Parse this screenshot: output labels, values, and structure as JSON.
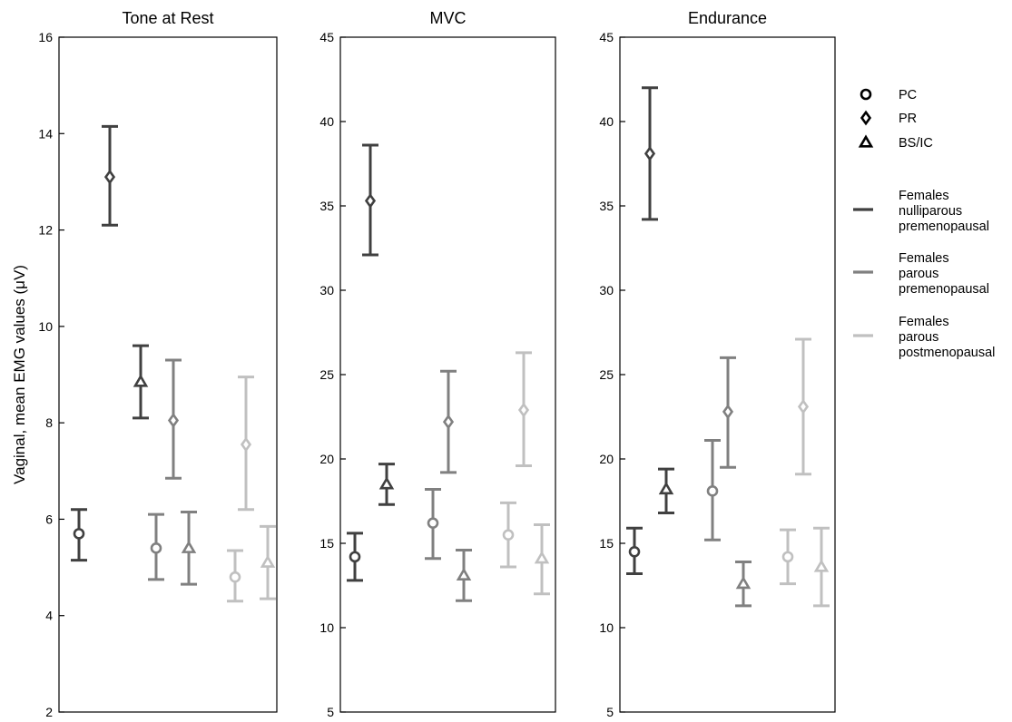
{
  "chart_data": {
    "type": "scatter",
    "ylabel": "Vaginal, mean EMG values (μV)",
    "markers": [
      {
        "name": "PC",
        "shape": "circle"
      },
      {
        "name": "PR",
        "shape": "diamond"
      },
      {
        "name": "BS/IC",
        "shape": "triangle"
      }
    ],
    "groups": [
      {
        "name": "Females nulliparous premenopausal",
        "lines": [
          "Females",
          "nulliparous",
          "premenopausal"
        ],
        "color": "#404040"
      },
      {
        "name": "Females parous premenopausal",
        "lines": [
          "Females",
          "parous",
          "premenopausal"
        ],
        "color": "#808080"
      },
      {
        "name": "Females parous postmenopausal",
        "lines": [
          "Females",
          "parous",
          "postmenopausal"
        ],
        "color": "#c0c0c0"
      }
    ],
    "panels": [
      {
        "title": "Tone at Rest",
        "ylim": [
          2,
          16
        ],
        "yticks": [
          "2",
          "4",
          "6",
          "8",
          "10",
          "12",
          "14",
          "16"
        ],
        "points": [
          {
            "group": 0,
            "marker": "PC",
            "mean": 5.7,
            "low": 5.15,
            "high": 6.2
          },
          {
            "group": 0,
            "marker": "PR",
            "mean": 13.1,
            "low": 12.1,
            "high": 14.15
          },
          {
            "group": 0,
            "marker": "BS/IC",
            "mean": 8.85,
            "low": 8.1,
            "high": 9.6
          },
          {
            "group": 1,
            "marker": "PC",
            "mean": 5.4,
            "low": 4.75,
            "high": 6.1
          },
          {
            "group": 1,
            "marker": "PR",
            "mean": 8.05,
            "low": 6.85,
            "high": 9.3
          },
          {
            "group": 1,
            "marker": "BS/IC",
            "mean": 5.4,
            "low": 4.65,
            "high": 6.15
          },
          {
            "group": 2,
            "marker": "PC",
            "mean": 4.8,
            "low": 4.3,
            "high": 5.35
          },
          {
            "group": 2,
            "marker": "PR",
            "mean": 7.55,
            "low": 6.2,
            "high": 8.95
          },
          {
            "group": 2,
            "marker": "BS/IC",
            "mean": 5.1,
            "low": 4.35,
            "high": 5.85
          }
        ]
      },
      {
        "title": "MVC",
        "ylim": [
          5,
          45
        ],
        "yticks": [
          "5",
          "10",
          "15",
          "20",
          "25",
          "30",
          "35",
          "40",
          "45"
        ],
        "points": [
          {
            "group": 0,
            "marker": "PC",
            "mean": 14.2,
            "low": 12.8,
            "high": 15.6
          },
          {
            "group": 0,
            "marker": "PR",
            "mean": 35.3,
            "low": 32.1,
            "high": 38.6
          },
          {
            "group": 0,
            "marker": "BS/IC",
            "mean": 18.5,
            "low": 17.3,
            "high": 19.7
          },
          {
            "group": 1,
            "marker": "PC",
            "mean": 16.2,
            "low": 14.1,
            "high": 18.2
          },
          {
            "group": 1,
            "marker": "PR",
            "mean": 22.2,
            "low": 19.2,
            "high": 25.2
          },
          {
            "group": 1,
            "marker": "BS/IC",
            "mean": 13.1,
            "low": 11.6,
            "high": 14.6
          },
          {
            "group": 2,
            "marker": "PC",
            "mean": 15.5,
            "low": 13.6,
            "high": 17.4
          },
          {
            "group": 2,
            "marker": "PR",
            "mean": 22.9,
            "low": 19.6,
            "high": 26.3
          },
          {
            "group": 2,
            "marker": "BS/IC",
            "mean": 14.1,
            "low": 12.0,
            "high": 16.1
          }
        ]
      },
      {
        "title": "Endurance",
        "ylim": [
          5,
          45
        ],
        "yticks": [
          "5",
          "10",
          "15",
          "20",
          "25",
          "30",
          "35",
          "40",
          "45"
        ],
        "points": [
          {
            "group": 0,
            "marker": "PC",
            "mean": 14.5,
            "low": 13.2,
            "high": 15.9
          },
          {
            "group": 0,
            "marker": "PR",
            "mean": 38.1,
            "low": 34.2,
            "high": 42.0
          },
          {
            "group": 0,
            "marker": "BS/IC",
            "mean": 18.2,
            "low": 16.8,
            "high": 19.4
          },
          {
            "group": 1,
            "marker": "PC",
            "mean": 18.1,
            "low": 15.2,
            "high": 21.1
          },
          {
            "group": 1,
            "marker": "PR",
            "mean": 22.8,
            "low": 19.5,
            "high": 26.0
          },
          {
            "group": 1,
            "marker": "BS/IC",
            "mean": 12.6,
            "low": 11.3,
            "high": 13.9
          },
          {
            "group": 2,
            "marker": "PC",
            "mean": 14.2,
            "low": 12.6,
            "high": 15.8
          },
          {
            "group": 2,
            "marker": "PR",
            "mean": 23.1,
            "low": 19.1,
            "high": 27.1
          },
          {
            "group": 2,
            "marker": "BS/IC",
            "mean": 13.6,
            "low": 11.3,
            "high": 15.9
          }
        ]
      }
    ],
    "grid": false,
    "legend": "right"
  }
}
